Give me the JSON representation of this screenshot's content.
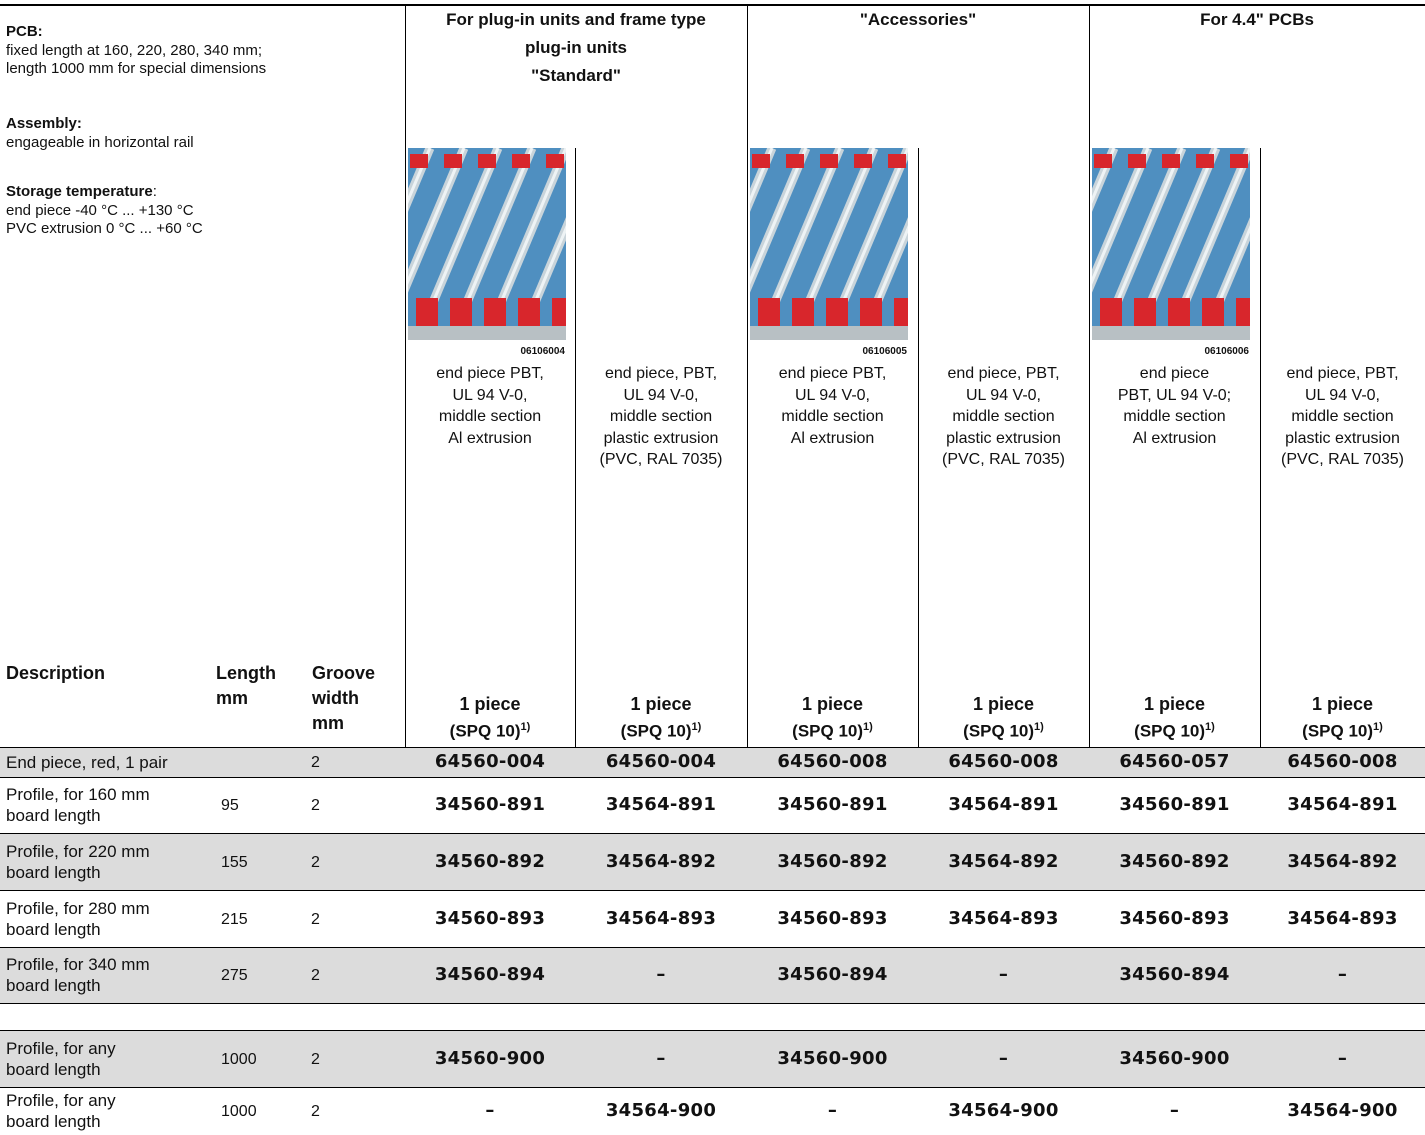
{
  "notes": [
    {
      "label": "PCB:",
      "suffix": null,
      "lines": [
        "fixed length at 160, 220, 280, 340 mm;",
        "length 1000 mm for special dimensions"
      ]
    },
    {
      "label": "Assembly:",
      "suffix": null,
      "lines": [
        "engageable in horizontal rail"
      ]
    },
    {
      "label": "Storage temperature",
      "suffix": ":",
      "lines": [
        "end piece -40 °C ... +130 °C",
        "PVC extrusion 0 °C ... +60 °C"
      ]
    }
  ],
  "groups": [
    {
      "title": [
        "For plug-in units and frame type",
        "plug-in units",
        "\"Standard\""
      ]
    },
    {
      "title": [
        "\"Accessories\""
      ]
    },
    {
      "title": [
        "For 4.4\" PCBs"
      ]
    }
  ],
  "products": [
    {
      "image_code": "06106004",
      "description": [
        "end piece PBT,",
        "UL 94 V-0,",
        "middle section",
        "Al extrusion"
      ]
    },
    {
      "image_code": null,
      "description": [
        "end piece, PBT,",
        "UL 94 V-0,",
        "middle section",
        "plastic extrusion",
        "(PVC, RAL 7035)"
      ]
    },
    {
      "image_code": "06106005",
      "description": [
        "end piece PBT,",
        "UL 94 V-0,",
        "middle section",
        "Al extrusion"
      ]
    },
    {
      "image_code": null,
      "description": [
        "end piece, PBT,",
        "UL 94 V-0,",
        "middle section",
        "plastic extrusion",
        "(PVC, RAL 7035)"
      ]
    },
    {
      "image_code": "06106006",
      "description": [
        "end piece",
        "PBT, UL 94 V-0;",
        "middle section",
        "Al extrusion"
      ]
    },
    {
      "image_code": null,
      "description": [
        "end piece, PBT,",
        "UL 94 V-0,",
        "middle section",
        "plastic extrusion",
        "(PVC, RAL 7035)"
      ]
    }
  ],
  "table": {
    "headers": {
      "description": [
        "Description"
      ],
      "length": [
        "Length",
        "mm"
      ],
      "groove": [
        "Groove",
        "width",
        "mm"
      ]
    },
    "order_units": [
      {
        "quantity": "1 piece",
        "packaging": "(SPQ 10)",
        "footnote": "1)"
      },
      {
        "quantity": "1 piece",
        "packaging": "(SPQ 10)",
        "footnote": "1)"
      },
      {
        "quantity": "1 piece",
        "packaging": "(SPQ 10)",
        "footnote": "1)"
      },
      {
        "quantity": "1 piece",
        "packaging": "(SPQ 10)",
        "footnote": "1)"
      },
      {
        "quantity": "1 piece",
        "packaging": "(SPQ 10)",
        "footnote": "1)"
      },
      {
        "quantity": "1 piece",
        "packaging": "(SPQ 10)",
        "footnote": "1)"
      }
    ],
    "rows": [
      {
        "description": [
          "End piece, red, 1 pair"
        ],
        "length": null,
        "groove": 2,
        "codes": [
          "64560-004",
          "64560-004",
          "64560-008",
          "64560-008",
          "64560-057",
          "64560-008"
        ]
      },
      {
        "description": [
          "Profile, for 160 mm",
          "board length"
        ],
        "length": 95,
        "groove": 2,
        "codes": [
          "34560-891",
          "34564-891",
          "34560-891",
          "34564-891",
          "34560-891",
          "34564-891"
        ]
      },
      {
        "description": [
          "Profile, for 220 mm",
          "board length"
        ],
        "length": 155,
        "groove": 2,
        "codes": [
          "34560-892",
          "34564-892",
          "34560-892",
          "34564-892",
          "34560-892",
          "34564-892"
        ]
      },
      {
        "description": [
          "Profile, for 280 mm",
          "board length"
        ],
        "length": 215,
        "groove": 2,
        "codes": [
          "34560-893",
          "34564-893",
          "34560-893",
          "34564-893",
          "34560-893",
          "34564-893"
        ]
      },
      {
        "description": [
          "Profile, for 340 mm",
          "board length"
        ],
        "length": 275,
        "groove": 2,
        "codes": [
          "34560-894",
          "–",
          "34560-894",
          "–",
          "34560-894",
          "–"
        ]
      }
    ],
    "special_rows": [
      {
        "description": [
          "Profile, for any",
          "board length"
        ],
        "length": 1000,
        "groove": 2,
        "codes": [
          "34560-900",
          "–",
          "34560-900",
          "–",
          "34560-900",
          "–"
        ]
      },
      {
        "description": [
          "Profile, for any",
          "board length"
        ],
        "length": 1000,
        "groove": 2,
        "codes": [
          "–",
          "34564-900",
          "–",
          "34564-900",
          "–",
          "34564-900"
        ]
      }
    ]
  }
}
